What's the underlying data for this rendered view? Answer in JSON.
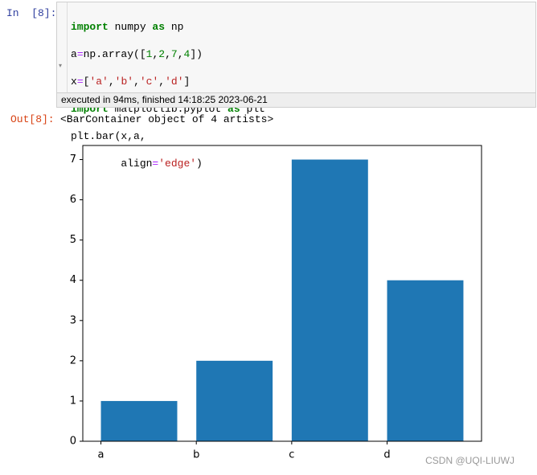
{
  "cell": {
    "prompt": "In  [8]:",
    "code": [
      [
        "import",
        " numpy ",
        "as",
        " np"
      ],
      [
        "a",
        "=",
        "np.array([",
        "1",
        ",",
        "2",
        ",",
        "7",
        ",",
        "4",
        "])"
      ],
      [
        "x",
        "=",
        "[",
        "'a'",
        ",",
        "'b'",
        ",",
        "'c'",
        ",",
        "'d'",
        "]"
      ],
      [
        "import",
        " matplotlib.pyplot ",
        "as",
        " plt"
      ],
      [
        "plt.bar(x,a,"
      ],
      [
        "        align",
        "=",
        "'edge'",
        ")"
      ]
    ],
    "execution_info": "executed in 94ms, finished 14:18:25 2023-06-21",
    "output_prompt": "Out[8]:",
    "output_text": "<BarContainer object of 4 artists>"
  },
  "chart_data": {
    "type": "bar",
    "categories": [
      "a",
      "b",
      "c",
      "d"
    ],
    "values": [
      1,
      2,
      7,
      4
    ],
    "color": "#1f77b4",
    "align": "edge",
    "ylim": [
      0,
      7.35
    ],
    "yticks": [
      0,
      1,
      2,
      3,
      4,
      5,
      6,
      7
    ],
    "grid": false
  },
  "watermark": "CSDN @UQI-LIUWJ"
}
